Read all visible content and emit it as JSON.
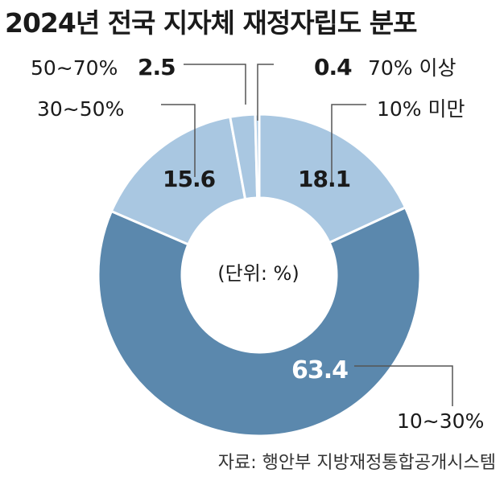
{
  "title": "2024년 전국 지자체 재정자립도 분포",
  "unit_note": "(단위: %)",
  "source": "자료: 행안부 지방재정통합공개시스템",
  "colors": {
    "light": "#a9c7e1",
    "dark": "#5b88ad",
    "stroke": "#ffffff"
  },
  "chart_data": {
    "type": "pie",
    "donut": true,
    "title": "2024년 전국 지자체 재정자립도 분포",
    "unit": "%",
    "categories": [
      "10% 미만",
      "10∼30%",
      "30∼50%",
      "50∼70%",
      "70% 이상"
    ],
    "values": [
      18.1,
      63.4,
      15.6,
      2.5,
      0.4
    ],
    "value_labels": [
      "18.1",
      "63.4",
      "15.6",
      "2.5",
      "0.4"
    ]
  }
}
